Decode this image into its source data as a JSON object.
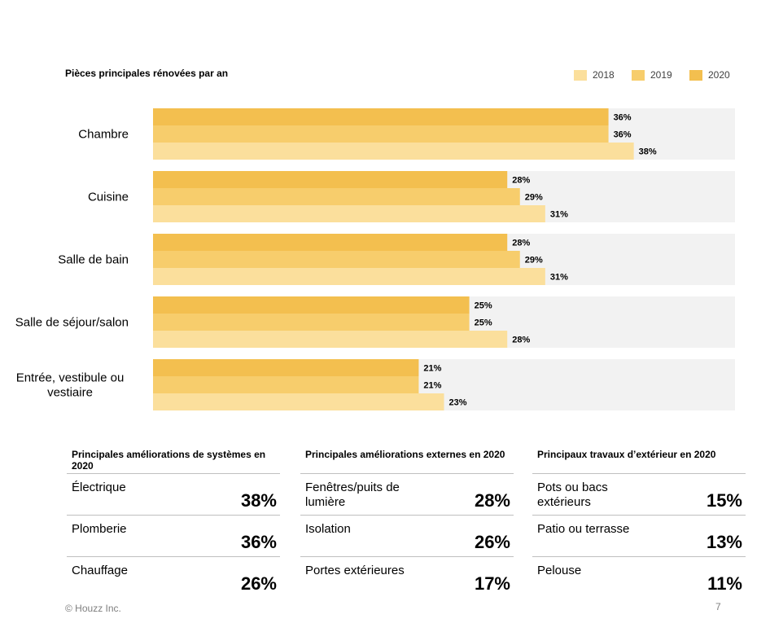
{
  "chart_data": {
    "type": "bar",
    "orientation": "horizontal",
    "title": "Pièces principales rénovées par an",
    "categories": [
      "Chambre",
      "Cuisine",
      "Salle de bain",
      "Salle de séjour/salon",
      "Entrée, vestibule ou vestiaire"
    ],
    "series": [
      {
        "name": "2020",
        "color": "#f3bf4f",
        "values": [
          36,
          28,
          28,
          25,
          21
        ]
      },
      {
        "name": "2019",
        "color": "#f7cd6c",
        "values": [
          36,
          29,
          29,
          25,
          21
        ]
      },
      {
        "name": "2018",
        "color": "#fbdf9c",
        "values": [
          38,
          31,
          31,
          28,
          23
        ]
      }
    ],
    "legend_order": [
      "2018",
      "2019",
      "2020"
    ],
    "xlim": [
      0,
      46
    ],
    "value_suffix": "%",
    "legend": "top-right",
    "grid": false
  },
  "panels": [
    {
      "title": "Principales améliorations de systèmes en 2020",
      "items": [
        {
          "label": "Électrique",
          "value": "38%"
        },
        {
          "label": "Plomberie",
          "value": "36%"
        },
        {
          "label": "Chauffage",
          "value": "26%"
        }
      ]
    },
    {
      "title": "Principales améliorations externes en 2020",
      "items": [
        {
          "label": "Fenêtres/puits de lumière",
          "value": "28%"
        },
        {
          "label": "Isolation",
          "value": "26%"
        },
        {
          "label": "Portes extérieures",
          "value": "17%"
        }
      ]
    },
    {
      "title": "Principaux travaux d’extérieur en 2020",
      "items": [
        {
          "label": "Pots ou bacs extérieurs",
          "value": "15%"
        },
        {
          "label": "Patio ou terrasse",
          "value": "13%"
        },
        {
          "label": "Pelouse",
          "value": "11%"
        }
      ]
    }
  ],
  "footer": {
    "copyright": "© Houzz Inc.",
    "page": "7"
  }
}
